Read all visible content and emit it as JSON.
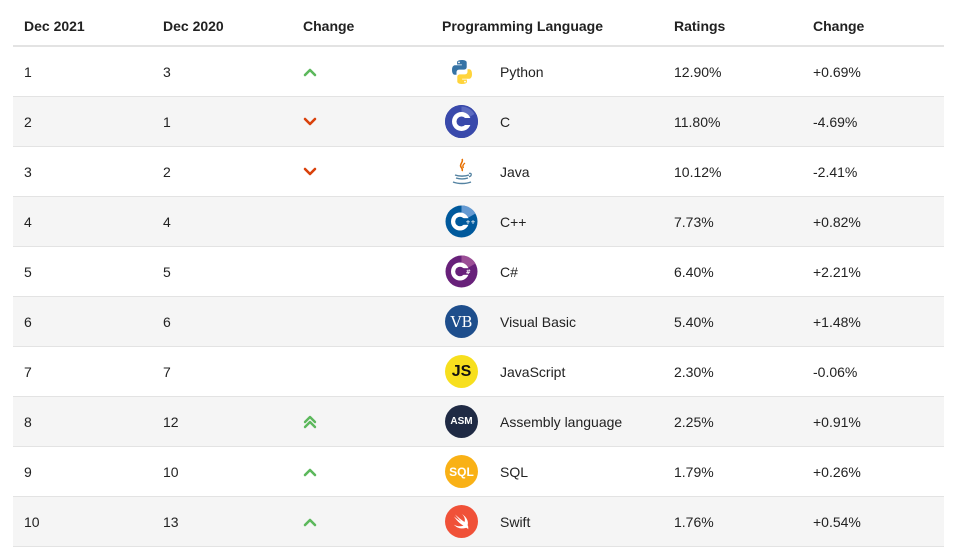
{
  "headers": {
    "dec2021": "Dec 2021",
    "dec2020": "Dec 2020",
    "change": "Change",
    "language": "Programming Language",
    "ratings": "Ratings",
    "change2": "Change"
  },
  "colors": {
    "up": "#5cb85c",
    "down": "#d9410b",
    "row_alt": "#f5f5f5",
    "border": "#e3e3e3"
  },
  "rows": [
    {
      "rank2021": "1",
      "rank2020": "3",
      "trend": "up",
      "language": "Python",
      "logo": "python-logo",
      "ratings": "12.90%",
      "change": "+0.69%"
    },
    {
      "rank2021": "2",
      "rank2020": "1",
      "trend": "down",
      "language": "C",
      "logo": "c-logo",
      "ratings": "11.80%",
      "change": "-4.69%"
    },
    {
      "rank2021": "3",
      "rank2020": "2",
      "trend": "down",
      "language": "Java",
      "logo": "java-logo",
      "ratings": "10.12%",
      "change": "-2.41%"
    },
    {
      "rank2021": "4",
      "rank2020": "4",
      "trend": "none",
      "language": "C++",
      "logo": "cpp-logo",
      "ratings": "7.73%",
      "change": "+0.82%"
    },
    {
      "rank2021": "5",
      "rank2020": "5",
      "trend": "none",
      "language": "C#",
      "logo": "csharp-logo",
      "ratings": "6.40%",
      "change": "+2.21%"
    },
    {
      "rank2021": "6",
      "rank2020": "6",
      "trend": "none",
      "language": "Visual Basic",
      "logo": "vb-logo",
      "logo_text": "VB",
      "ratings": "5.40%",
      "change": "+1.48%"
    },
    {
      "rank2021": "7",
      "rank2020": "7",
      "trend": "none",
      "language": "JavaScript",
      "logo": "js-logo",
      "logo_text": "JS",
      "ratings": "2.30%",
      "change": "-0.06%"
    },
    {
      "rank2021": "8",
      "rank2020": "12",
      "trend": "up-double",
      "language": "Assembly language",
      "logo": "asm-logo",
      "logo_text": "ASM",
      "ratings": "2.25%",
      "change": "+0.91%"
    },
    {
      "rank2021": "9",
      "rank2020": "10",
      "trend": "up",
      "language": "SQL",
      "logo": "sql-logo",
      "logo_text": "SQL",
      "ratings": "1.79%",
      "change": "+0.26%"
    },
    {
      "rank2021": "10",
      "rank2020": "13",
      "trend": "up",
      "language": "Swift",
      "logo": "swift-logo",
      "ratings": "1.76%",
      "change": "+0.54%"
    }
  ]
}
